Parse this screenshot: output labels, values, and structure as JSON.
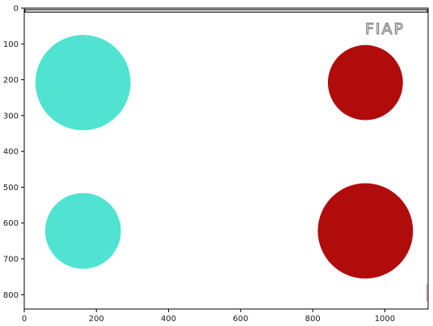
{
  "chart_data": {
    "type": "image",
    "image_size": {
      "width": 1120,
      "height": 840
    },
    "xlim": [
      0,
      1120
    ],
    "ylim": [
      840,
      0
    ],
    "x_ticks": [
      0,
      200,
      400,
      600,
      800,
      1000
    ],
    "y_ticks": [
      0,
      100,
      200,
      300,
      400,
      500,
      600,
      700,
      800
    ],
    "grid": false,
    "logo": {
      "text": "FIAP",
      "color": "#777777"
    },
    "circles": [
      {
        "cx": 163,
        "cy": 208,
        "r": 132,
        "color": "#50e3d2"
      },
      {
        "cx": 946,
        "cy": 208,
        "r": 104,
        "color": "#b00c0c"
      },
      {
        "cx": 163,
        "cy": 622,
        "r": 105,
        "color": "#50e3d2"
      },
      {
        "cx": 946,
        "cy": 622,
        "r": 132,
        "color": "#b00c0c"
      }
    ]
  }
}
